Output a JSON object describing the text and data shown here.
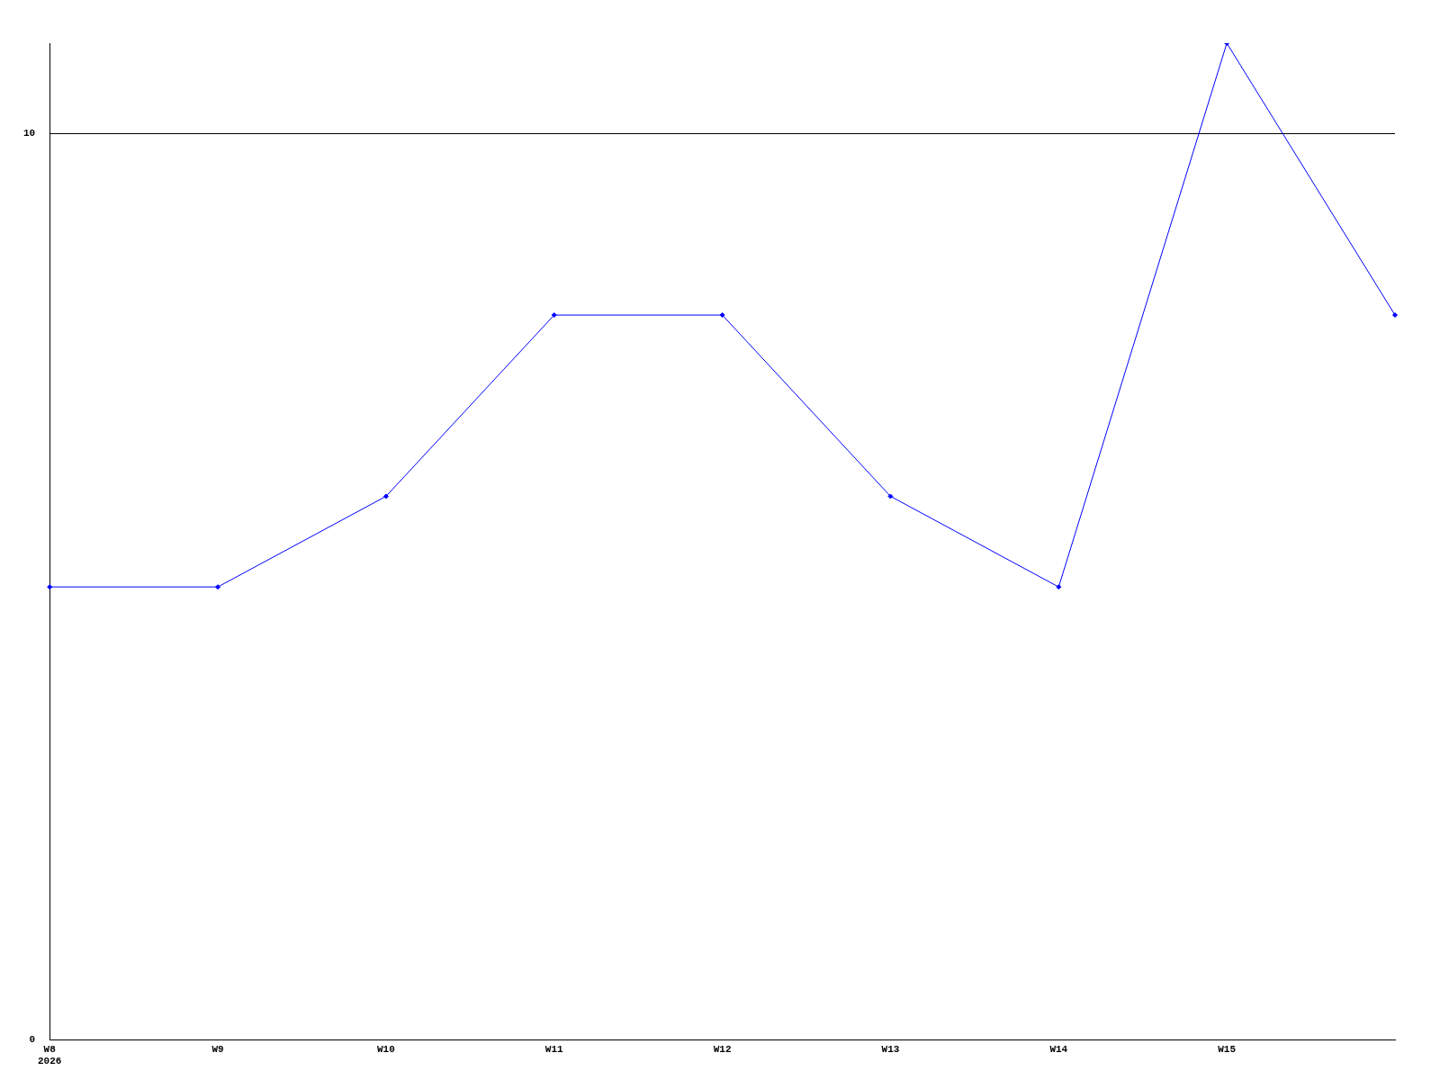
{
  "chart_data": {
    "type": "line",
    "categories": [
      "W8\n2026",
      "W9",
      "W10",
      "W11",
      "W12",
      "W13",
      "W14",
      "W15",
      null
    ],
    "series": [
      {
        "color": "#0000ff",
        "values": [
          5,
          5,
          6,
          8,
          8,
          6,
          5,
          11,
          8
        ]
      }
    ],
    "ylim": [
      0,
      11
    ],
    "yticks": [
      0,
      10
    ],
    "grid": "y",
    "legend": false,
    "marker": "diamond",
    "line_style": "solid"
  }
}
